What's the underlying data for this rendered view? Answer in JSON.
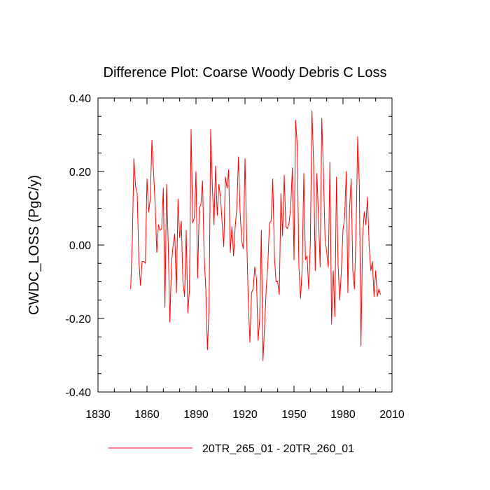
{
  "chart_data": {
    "type": "line",
    "title": "Difference Plot: Coarse Woody Debris C Loss",
    "xlabel": "",
    "ylabel": "CWDC_LOSS  (PgC/y)",
    "xlim": [
      1830,
      2010
    ],
    "ylim": [
      -0.4,
      0.4
    ],
    "xticks": [
      1830,
      1860,
      1890,
      1920,
      1950,
      1980,
      2010
    ],
    "xtick_labels": [
      "1830",
      "1860",
      "1890",
      "1920",
      "1950",
      "1980",
      "2010"
    ],
    "yticks": [
      -0.4,
      -0.2,
      0.0,
      0.2,
      0.4
    ],
    "ytick_labels": [
      "-0.40",
      "-0.20",
      "0.00",
      "0.20",
      "0.40"
    ],
    "grid": false,
    "legend_position": "bottom-center",
    "series": [
      {
        "name": "20TR_265_01 - 20TR_260_01",
        "color": "#ff0000",
        "x_start": 1850,
        "x_step": 1,
        "values": [
          -0.12,
          0.01,
          0.235,
          0.16,
          0.14,
          -0.04,
          -0.11,
          -0.045,
          -0.045,
          -0.05,
          0.18,
          0.09,
          0.125,
          0.285,
          0.2,
          0.11,
          -0.02,
          0.055,
          0.04,
          0.045,
          0.155,
          -0.17,
          0.165,
          0.0,
          -0.21,
          -0.05,
          0.0,
          0.03,
          -0.13,
          0.125,
          0.02,
          0.065,
          -0.1,
          -0.14,
          0.04,
          -0.185,
          -0.12,
          0.315,
          0.06,
          0.075,
          0.2,
          -0.09,
          0.1,
          0.11,
          0.175,
          -0.03,
          -0.12,
          -0.285,
          -0.17,
          0.315,
          0.16,
          0.055,
          0.215,
          0.08,
          0.165,
          0.13,
          0.06,
          -0.005,
          0.185,
          0.155,
          0.205,
          -0.02,
          0.05,
          -0.03,
          0.05,
          0.1,
          0.24,
          0.09,
          0.01,
          -0.01,
          0.235,
          0.03,
          -0.15,
          -0.265,
          -0.13,
          -0.12,
          -0.06,
          -0.09,
          -0.26,
          -0.2,
          0.04,
          -0.315,
          -0.22,
          -0.12,
          -0.05,
          0.06,
          0.065,
          0.18,
          -0.03,
          -0.1,
          -0.1,
          -0.135,
          0.14,
          0.025,
          0.19,
          0.05,
          0.045,
          0.06,
          0.105,
          0.21,
          -0.04,
          0.34,
          0.27,
          -0.06,
          -0.145,
          -0.065,
          0.195,
          -0.04,
          -0.03,
          -0.12,
          0.005,
          0.365,
          0.22,
          -0.07,
          0.195,
          0.075,
          -0.06,
          0.345,
          0.2,
          0.02,
          -0.02,
          -0.06,
          0.225,
          -0.215,
          -0.07,
          -0.195,
          0.185,
          -0.055,
          -0.15,
          -0.07,
          0.04,
          0.075,
          0.2,
          -0.13,
          0.1,
          0.18,
          -0.07,
          -0.12,
          0.04,
          0.295,
          0.165,
          -0.275,
          0.02,
          0.09,
          0.055,
          0.13,
          0.0,
          -0.07,
          -0.045,
          -0.14,
          -0.07,
          -0.14,
          -0.12,
          -0.135
        ]
      }
    ]
  }
}
